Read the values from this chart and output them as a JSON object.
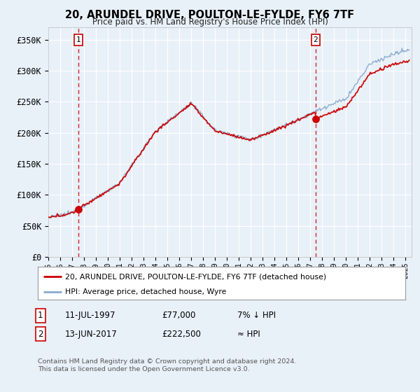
{
  "title": "20, ARUNDEL DRIVE, POULTON-LE-FYLDE, FY6 7TF",
  "subtitle": "Price paid vs. HM Land Registry's House Price Index (HPI)",
  "ylim": [
    0,
    370000
  ],
  "yticks": [
    0,
    50000,
    100000,
    150000,
    200000,
    250000,
    300000,
    350000
  ],
  "ytick_labels": [
    "£0",
    "£50K",
    "£100K",
    "£150K",
    "£200K",
    "£250K",
    "£300K",
    "£350K"
  ],
  "background_color": "#e8f0f8",
  "sale1_date_num": 1997.53,
  "sale1_price": 77000,
  "sale1_label": "1",
  "sale2_date_num": 2017.44,
  "sale2_price": 222500,
  "sale2_label": "2",
  "legend_line1": "20, ARUNDEL DRIVE, POULTON-LE-FYLDE, FY6 7TF (detached house)",
  "legend_line2": "HPI: Average price, detached house, Wyre",
  "footer": "Contains HM Land Registry data © Crown copyright and database right 2024.\nThis data is licensed under the Open Government Licence v3.0.",
  "sale_color": "#cc0000",
  "hpi_color": "#88aacc",
  "xlim_left": 1995.0,
  "xlim_right": 2025.5,
  "xtick_years": [
    1995,
    1996,
    1997,
    1998,
    1999,
    2000,
    2001,
    2002,
    2003,
    2004,
    2005,
    2006,
    2007,
    2008,
    2009,
    2010,
    2011,
    2012,
    2013,
    2014,
    2015,
    2016,
    2017,
    2018,
    2019,
    2020,
    2021,
    2022,
    2023,
    2024,
    2025
  ]
}
